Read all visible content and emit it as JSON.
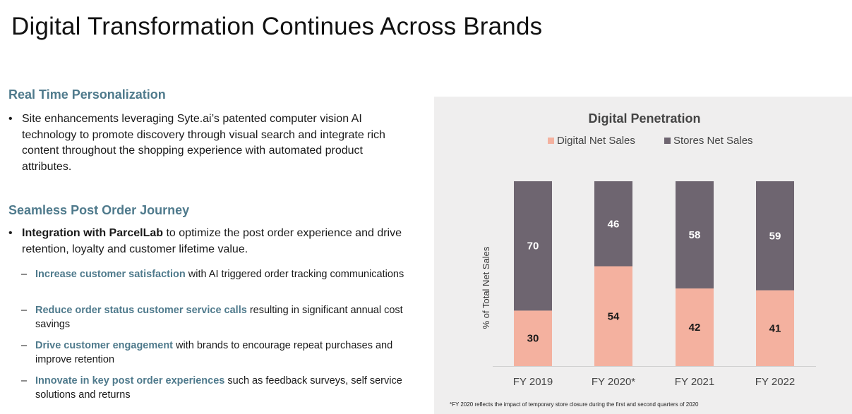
{
  "page": {
    "title": "Digital Transformation Continues Across Brands"
  },
  "sections": [
    {
      "heading": "Real Time Personalization",
      "bullet": "Site enhancements leveraging Syte.ai’s patented computer vision AI technology to promote discovery through visual search and integrate rich content throughout the shopping experience with automated product attributes."
    },
    {
      "heading": "Seamless Post Order Journey",
      "bullet_bold": "Integration with ParcelLab",
      "bullet_rest": " to optimize the post order experience and drive retention, loyalty and customer lifetime value.",
      "sub_items": [
        {
          "highlight": "Increase customer satisfaction",
          "text": " with AI triggered order tracking communications"
        },
        {
          "highlight": "Reduce order status customer service calls",
          "text": " resulting in significant annual cost savings"
        },
        {
          "highlight": "Drive customer engagement",
          "text": " with brands to encourage repeat purchases and improve retention"
        },
        {
          "highlight": "Innovate in key post order experiences",
          "text": " such as feedback surveys, self service solutions and returns"
        }
      ]
    }
  ],
  "bullet_char": "•",
  "dash_char": "–",
  "chart_data": {
    "type": "bar",
    "stacked": true,
    "title": "Digital Penetration",
    "ylabel": "% of Total Net Sales",
    "xlabel": "",
    "categories": [
      "FY 2019",
      "FY 2020*",
      "FY 2021",
      "FY 2022"
    ],
    "series": [
      {
        "name": "Digital Net Sales",
        "values": [
          30,
          54,
          42,
          41
        ],
        "color": "#f4b19f"
      },
      {
        "name": "Stores Net Sales",
        "values": [
          70,
          46,
          58,
          59
        ],
        "color": "#6e6570"
      }
    ],
    "ylim": [
      0,
      100
    ],
    "grid": false,
    "legend": "top",
    "data_labels": true,
    "footnote": "*FY 2020 reflects the impact of temporary store closure during the first and second quarters of 2020"
  }
}
